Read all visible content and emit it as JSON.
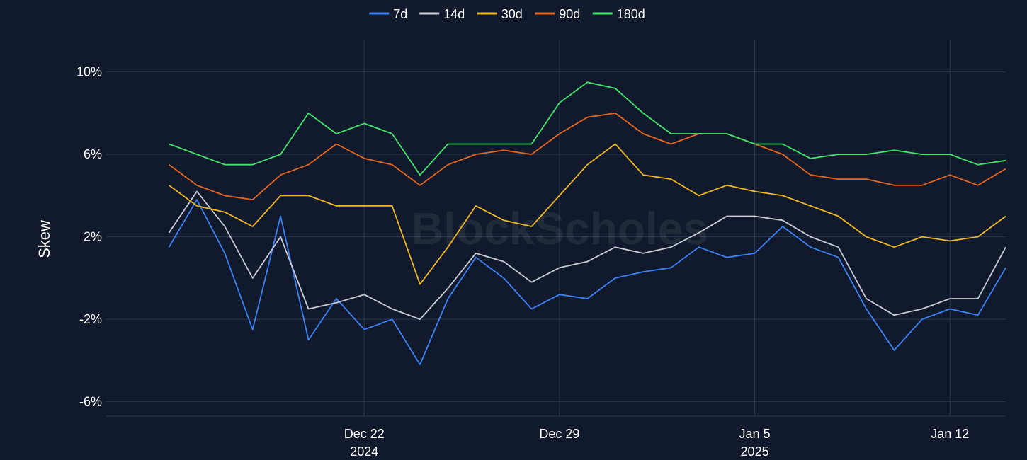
{
  "watermark": "BlockScholes",
  "chart_data": {
    "type": "line",
    "ylabel": "Skew",
    "ylim": [
      -6.7,
      11.6
    ],
    "y_ticks": [
      {
        "value": 10,
        "label": "10%"
      },
      {
        "value": 6,
        "label": "6%"
      },
      {
        "value": 2,
        "label": "2%"
      },
      {
        "value": -2,
        "label": "-2%"
      },
      {
        "value": -6,
        "label": "-6%"
      }
    ],
    "x_range": [
      "2024-12-12T18:00",
      "2025-01-14T00:00"
    ],
    "x_ticks": [
      {
        "date": "2024-12-22",
        "label": "Dec 22",
        "sublabel": "2024"
      },
      {
        "date": "2024-12-29",
        "label": "Dec 29",
        "sublabel": ""
      },
      {
        "date": "2025-01-05",
        "label": "Jan 5",
        "sublabel": "2025"
      },
      {
        "date": "2025-01-12",
        "label": "Jan 12",
        "sublabel": ""
      }
    ],
    "legend_position": "top-center",
    "grid": true,
    "series": [
      {
        "name": "7d",
        "color": "#3b82f6",
        "points": [
          [
            "2024-12-15",
            1.5
          ],
          [
            "2024-12-16",
            3.8
          ],
          [
            "2024-12-17",
            1.2
          ],
          [
            "2024-12-18",
            -2.5
          ],
          [
            "2024-12-19",
            3.0
          ],
          [
            "2024-12-20",
            -3.0
          ],
          [
            "2024-12-21",
            -1.0
          ],
          [
            "2024-12-22",
            -2.5
          ],
          [
            "2024-12-23",
            -2.0
          ],
          [
            "2024-12-24",
            -4.2
          ],
          [
            "2024-12-25",
            -1.0
          ],
          [
            "2024-12-26",
            1.0
          ],
          [
            "2024-12-27",
            0.0
          ],
          [
            "2024-12-28",
            -1.5
          ],
          [
            "2024-12-29",
            -0.8
          ],
          [
            "2024-12-30",
            -1.0
          ],
          [
            "2024-12-31",
            0.0
          ],
          [
            "2025-01-01",
            0.3
          ],
          [
            "2025-01-02",
            0.5
          ],
          [
            "2025-01-03",
            1.5
          ],
          [
            "2025-01-04",
            1.0
          ],
          [
            "2025-01-05",
            1.2
          ],
          [
            "2025-01-06",
            2.5
          ],
          [
            "2025-01-07",
            1.5
          ],
          [
            "2025-01-08",
            1.0
          ],
          [
            "2025-01-09",
            -1.5
          ],
          [
            "2025-01-10",
            -3.5
          ],
          [
            "2025-01-11",
            -2.0
          ],
          [
            "2025-01-12",
            -1.5
          ],
          [
            "2025-01-13",
            -1.8
          ],
          [
            "2025-01-14",
            0.5
          ]
        ]
      },
      {
        "name": "14d",
        "color": "#c7ccd6",
        "points": [
          [
            "2024-12-15",
            2.2
          ],
          [
            "2024-12-16",
            4.2
          ],
          [
            "2024-12-17",
            2.5
          ],
          [
            "2024-12-18",
            0.0
          ],
          [
            "2024-12-19",
            2.0
          ],
          [
            "2024-12-20",
            -1.5
          ],
          [
            "2024-12-21",
            -1.2
          ],
          [
            "2024-12-22",
            -0.8
          ],
          [
            "2024-12-23",
            -1.5
          ],
          [
            "2024-12-24",
            -2.0
          ],
          [
            "2024-12-25",
            -0.5
          ],
          [
            "2024-12-26",
            1.2
          ],
          [
            "2024-12-27",
            0.8
          ],
          [
            "2024-12-28",
            -0.2
          ],
          [
            "2024-12-29",
            0.5
          ],
          [
            "2024-12-30",
            0.8
          ],
          [
            "2024-12-31",
            1.5
          ],
          [
            "2025-01-01",
            1.2
          ],
          [
            "2025-01-02",
            1.5
          ],
          [
            "2025-01-03",
            2.2
          ],
          [
            "2025-01-04",
            3.0
          ],
          [
            "2025-01-05",
            3.0
          ],
          [
            "2025-01-06",
            2.8
          ],
          [
            "2025-01-07",
            2.0
          ],
          [
            "2025-01-08",
            1.5
          ],
          [
            "2025-01-09",
            -1.0
          ],
          [
            "2025-01-10",
            -1.8
          ],
          [
            "2025-01-11",
            -1.5
          ],
          [
            "2025-01-12",
            -1.0
          ],
          [
            "2025-01-13",
            -1.0
          ],
          [
            "2025-01-14",
            1.5
          ]
        ]
      },
      {
        "name": "30d",
        "color": "#f0b820",
        "points": [
          [
            "2024-12-15",
            4.5
          ],
          [
            "2024-12-16",
            3.5
          ],
          [
            "2024-12-17",
            3.2
          ],
          [
            "2024-12-18",
            2.5
          ],
          [
            "2024-12-19",
            4.0
          ],
          [
            "2024-12-20",
            4.0
          ],
          [
            "2024-12-21",
            3.5
          ],
          [
            "2024-12-22",
            3.5
          ],
          [
            "2024-12-23",
            3.5
          ],
          [
            "2024-12-24",
            -0.3
          ],
          [
            "2024-12-25",
            1.5
          ],
          [
            "2024-12-26",
            3.5
          ],
          [
            "2024-12-27",
            2.8
          ],
          [
            "2024-12-28",
            2.5
          ],
          [
            "2024-12-29",
            4.0
          ],
          [
            "2024-12-30",
            5.5
          ],
          [
            "2024-12-31",
            6.5
          ],
          [
            "2025-01-01",
            5.0
          ],
          [
            "2025-01-02",
            4.8
          ],
          [
            "2025-01-03",
            4.0
          ],
          [
            "2025-01-04",
            4.5
          ],
          [
            "2025-01-05",
            4.2
          ],
          [
            "2025-01-06",
            4.0
          ],
          [
            "2025-01-07",
            3.5
          ],
          [
            "2025-01-08",
            3.0
          ],
          [
            "2025-01-09",
            2.0
          ],
          [
            "2025-01-10",
            1.5
          ],
          [
            "2025-01-11",
            2.0
          ],
          [
            "2025-01-12",
            1.8
          ],
          [
            "2025-01-13",
            2.0
          ],
          [
            "2025-01-14",
            3.0
          ]
        ]
      },
      {
        "name": "90d",
        "color": "#e8661c",
        "points": [
          [
            "2024-12-15",
            5.5
          ],
          [
            "2024-12-16",
            4.5
          ],
          [
            "2024-12-17",
            4.0
          ],
          [
            "2024-12-18",
            3.8
          ],
          [
            "2024-12-19",
            5.0
          ],
          [
            "2024-12-20",
            5.5
          ],
          [
            "2024-12-21",
            6.5
          ],
          [
            "2024-12-22",
            5.8
          ],
          [
            "2024-12-23",
            5.5
          ],
          [
            "2024-12-24",
            4.5
          ],
          [
            "2024-12-25",
            5.5
          ],
          [
            "2024-12-26",
            6.0
          ],
          [
            "2024-12-27",
            6.2
          ],
          [
            "2024-12-28",
            6.0
          ],
          [
            "2024-12-29",
            7.0
          ],
          [
            "2024-12-30",
            7.8
          ],
          [
            "2024-12-31",
            8.0
          ],
          [
            "2025-01-01",
            7.0
          ],
          [
            "2025-01-02",
            6.5
          ],
          [
            "2025-01-03",
            7.0
          ],
          [
            "2025-01-04",
            7.0
          ],
          [
            "2025-01-05",
            6.5
          ],
          [
            "2025-01-06",
            6.0
          ],
          [
            "2025-01-07",
            5.0
          ],
          [
            "2025-01-08",
            4.8
          ],
          [
            "2025-01-09",
            4.8
          ],
          [
            "2025-01-10",
            4.5
          ],
          [
            "2025-01-11",
            4.5
          ],
          [
            "2025-01-12",
            5.0
          ],
          [
            "2025-01-13",
            4.5
          ],
          [
            "2025-01-14",
            5.3
          ]
        ]
      },
      {
        "name": "180d",
        "color": "#3fe56a",
        "points": [
          [
            "2024-12-15",
            6.5
          ],
          [
            "2024-12-16",
            6.0
          ],
          [
            "2024-12-17",
            5.5
          ],
          [
            "2024-12-18",
            5.5
          ],
          [
            "2024-12-19",
            6.0
          ],
          [
            "2024-12-20",
            8.0
          ],
          [
            "2024-12-21",
            7.0
          ],
          [
            "2024-12-22",
            7.5
          ],
          [
            "2024-12-23",
            7.0
          ],
          [
            "2024-12-24",
            5.0
          ],
          [
            "2024-12-25",
            6.5
          ],
          [
            "2024-12-26",
            6.5
          ],
          [
            "2024-12-27",
            6.5
          ],
          [
            "2024-12-28",
            6.5
          ],
          [
            "2024-12-29",
            8.5
          ],
          [
            "2024-12-30",
            9.5
          ],
          [
            "2024-12-31",
            9.2
          ],
          [
            "2025-01-01",
            8.0
          ],
          [
            "2025-01-02",
            7.0
          ],
          [
            "2025-01-03",
            7.0
          ],
          [
            "2025-01-04",
            7.0
          ],
          [
            "2025-01-05",
            6.5
          ],
          [
            "2025-01-06",
            6.5
          ],
          [
            "2025-01-07",
            5.8
          ],
          [
            "2025-01-08",
            6.0
          ],
          [
            "2025-01-09",
            6.0
          ],
          [
            "2025-01-10",
            6.2
          ],
          [
            "2025-01-11",
            6.0
          ],
          [
            "2025-01-12",
            6.0
          ],
          [
            "2025-01-13",
            5.5
          ],
          [
            "2025-01-14",
            5.7
          ]
        ]
      }
    ]
  }
}
